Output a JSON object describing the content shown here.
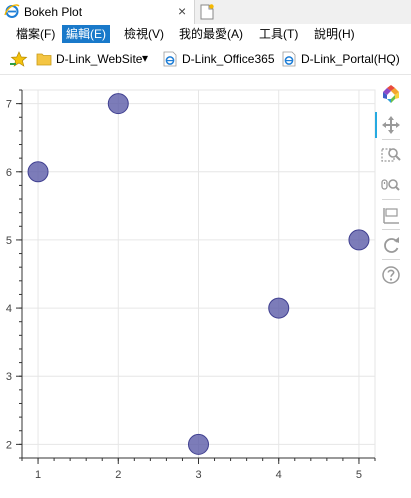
{
  "browser": {
    "tab_title": "Bokeh Plot",
    "tab_close": "×",
    "menu": [
      "檔案(F)",
      "編輯(E)",
      "檢視(V)",
      "我的最愛(A)",
      "工具(T)",
      "說明(H)"
    ],
    "active_menu_index": 1,
    "favorites": [
      "D-Link_WebSite",
      "D-Link_Office365",
      "D-Link_Portal(HQ)"
    ],
    "dropdown_glyph": "▾"
  },
  "toolbar": {
    "tools": [
      "bokeh-logo",
      "pan",
      "box-zoom",
      "wheel-zoom",
      "save",
      "reset",
      "help"
    ]
  },
  "chart_data": {
    "type": "scatter",
    "x": [
      1,
      2,
      3,
      4,
      5
    ],
    "y": [
      6,
      7,
      2,
      4,
      5
    ],
    "xlim": [
      0.8,
      5.2
    ],
    "ylim": [
      1.8,
      7.2
    ],
    "xticks": [
      1,
      2,
      3,
      4,
      5
    ],
    "yticks": [
      2,
      3,
      4,
      5,
      6,
      7
    ],
    "grid": true,
    "marker": "circle",
    "color": "#5b5ba8",
    "edge_color": "#3f3f90",
    "title": "",
    "xlabel": "",
    "ylabel": ""
  }
}
